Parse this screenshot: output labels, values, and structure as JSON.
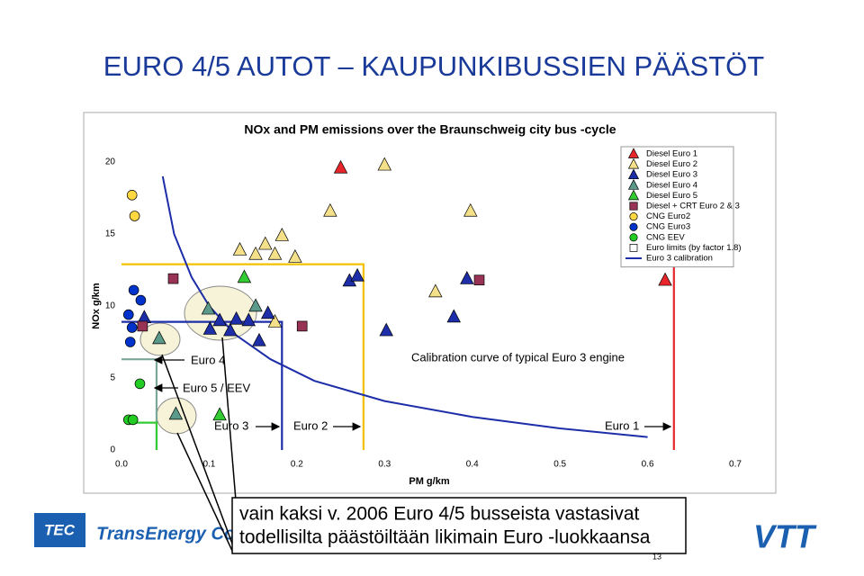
{
  "slide_title": "EURO 4/5 AUTOT – KAUPUNKIBUSSIEN PÄÄSTÖT",
  "callout": [
    "vain kaksi v. 2006 Euro 4/5 busseista vastasivat",
    "todellisilta päästöiltään likimain Euro -luokkaansa"
  ],
  "logos": [
    "TEC",
    "TransEnergy Consulting",
    "VTT"
  ],
  "page_number": "13",
  "chart_data": {
    "type": "scatter",
    "title": "NOx and PM emissions over the Braunschweig city bus -cycle",
    "x_label": "PM g/km",
    "y_label": "NOx g/km",
    "xlim": [
      0,
      0.7
    ],
    "ylim": [
      0,
      20
    ],
    "xticks": [
      {
        "value": 0,
        "label": "0.0"
      },
      0.1,
      0.2,
      0.3,
      0.4,
      0.5,
      0.6,
      0.7
    ],
    "yticks": [
      0,
      5,
      10,
      15,
      20
    ],
    "grid": false,
    "legend": "top-right",
    "series": [
      {
        "name": "Diesel Euro 1",
        "color": "#e8252b",
        "marker": "triangle",
        "x": [
          0.25,
          0.62
        ],
        "values": [
          19.6,
          11.8
        ]
      },
      {
        "name": "Diesel Euro 2",
        "color": "#f5e08a",
        "marker": "triangle",
        "x": [
          0.3,
          0.238,
          0.398,
          0.183,
          0.164,
          0.135,
          0.153,
          0.175,
          0.198,
          0.358,
          0.175
        ],
        "values": [
          19.8,
          16.6,
          16.6,
          14.9,
          14.3,
          13.9,
          13.6,
          13.6,
          13.4,
          11.0,
          8.9
        ]
      },
      {
        "name": "Diesel Euro 3",
        "color": "#1d2ea8",
        "marker": "triangle",
        "x": [
          0.26,
          0.269,
          0.394,
          0.379,
          0.302,
          0.026,
          0.101,
          0.124,
          0.157,
          0.131,
          0.167,
          0.145,
          0.112
        ],
        "values": [
          11.75,
          12.1,
          11.9,
          9.25,
          8.3,
          9.2,
          8.4,
          8.3,
          7.6,
          9.1,
          9.5,
          9.0,
          9.0
        ]
      },
      {
        "name": "Diesel Euro 4",
        "color": "#5b9a8a",
        "marker": "triangle",
        "x": [
          0.099,
          0.153,
          0.043,
          0.062
        ],
        "values": [
          9.8,
          10.0,
          7.75,
          2.5
        ]
      },
      {
        "name": "Diesel Euro 5",
        "color": "#33cc33",
        "marker": "triangle",
        "x": [
          0.14,
          0.112
        ],
        "values": [
          12.0,
          2.44
        ]
      },
      {
        "name": "Diesel + CRT Euro 2 & 3",
        "color": "#993355",
        "marker": "square",
        "x": [
          0.059,
          0.408,
          0.206,
          0.024
        ],
        "values": [
          11.9,
          11.8,
          8.6,
          8.6
        ]
      },
      {
        "name": "CNG Euro2",
        "color": "#ffd740",
        "marker": "circle",
        "x": [
          0.012,
          0.015
        ],
        "values": [
          17.7,
          16.25
        ]
      },
      {
        "name": "CNG Euro3",
        "color": "#0033cc",
        "marker": "circle",
        "x": [
          0.014,
          0.022,
          0.008,
          0.012,
          0.01
        ],
        "values": [
          11.1,
          10.4,
          9.4,
          8.5,
          7.5
        ]
      },
      {
        "name": "CNG EEV",
        "color": "#22cc22",
        "marker": "circle",
        "x": [
          0.021,
          0.008,
          0.013
        ],
        "values": [
          4.6,
          2.1,
          2.1
        ]
      },
      {
        "name": "Euro limits (by factor 1.8)",
        "color": "#000000",
        "marker": "square-open",
        "lines": [
          {
            "color": "#e8252b",
            "x": [
              0.63,
              0.63
            ],
            "values": [
              0,
              12.7
            ]
          },
          {
            "color": "#f2c200",
            "x": [
              0,
              0.276,
              0.276
            ],
            "values": [
              12.9,
              12.9,
              0
            ]
          },
          {
            "color": "#1d2ea8",
            "x": [
              0,
              0.183,
              0.183
            ],
            "values": [
              8.9,
              8.9,
              0
            ]
          },
          {
            "color": "#7aa79a",
            "x": [
              0,
              0.04,
              0.04
            ],
            "values": [
              6.3,
              6.3,
              0
            ]
          },
          {
            "color": "#33cc33",
            "x": [
              0.005,
              0.04,
              0.04
            ],
            "values": [
              1.9,
              1.9,
              0
            ]
          }
        ]
      },
      {
        "name": "Euro 3 calibration",
        "color": "#1d2ea8",
        "marker": "line",
        "x": [
          0.047,
          0.06,
          0.08,
          0.1,
          0.13,
          0.17,
          0.22,
          0.3,
          0.4,
          0.5,
          0.6
        ],
        "values": [
          19,
          15,
          12,
          10,
          8,
          6.3,
          4.8,
          3.4,
          2.3,
          1.5,
          0.9
        ]
      }
    ],
    "annotations": [
      "Euro 4",
      "Euro 5 / EEV",
      "Calibration curve of typical Euro 3 engine",
      "Euro 3",
      "Euro 2",
      "Euro 1"
    ]
  }
}
